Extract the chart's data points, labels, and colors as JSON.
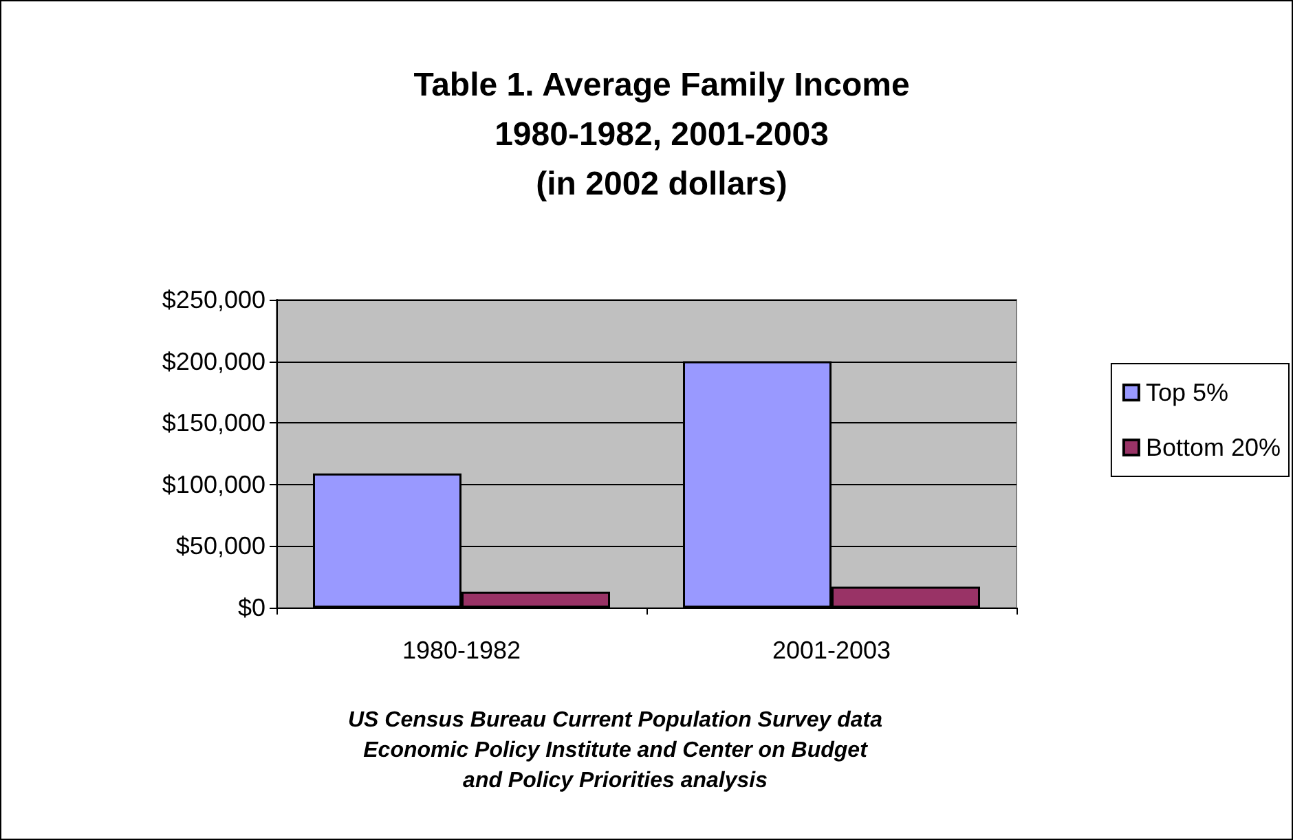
{
  "chart_data": {
    "type": "bar",
    "title": "Table 1. Average Family Income\n1980-1982, 2001-2003\n(in 2002 dollars)",
    "categories": [
      "1980-1982",
      "2001-2003"
    ],
    "series": [
      {
        "name": "Top 5%",
        "color": "#9999ff",
        "values": [
          109000,
          200000
        ]
      },
      {
        "name": "Bottom 20%",
        "color": "#993366",
        "values": [
          13000,
          17000
        ]
      }
    ],
    "ylim": [
      0,
      250000
    ],
    "yticks": [
      {
        "value": 0,
        "label": "$0"
      },
      {
        "value": 50000,
        "label": "$50,000"
      },
      {
        "value": 100000,
        "label": "$100,000"
      },
      {
        "value": 150000,
        "label": "$150,000"
      },
      {
        "value": 200000,
        "label": "$200,000"
      },
      {
        "value": 250000,
        "label": "$250,000"
      }
    ],
    "grid": "y",
    "legend": "right",
    "annotations": [
      "US Census Bureau Current Population Survey data",
      "Economic Policy Institute and Center on Budget",
      "and Policy Priorities analysis"
    ]
  }
}
